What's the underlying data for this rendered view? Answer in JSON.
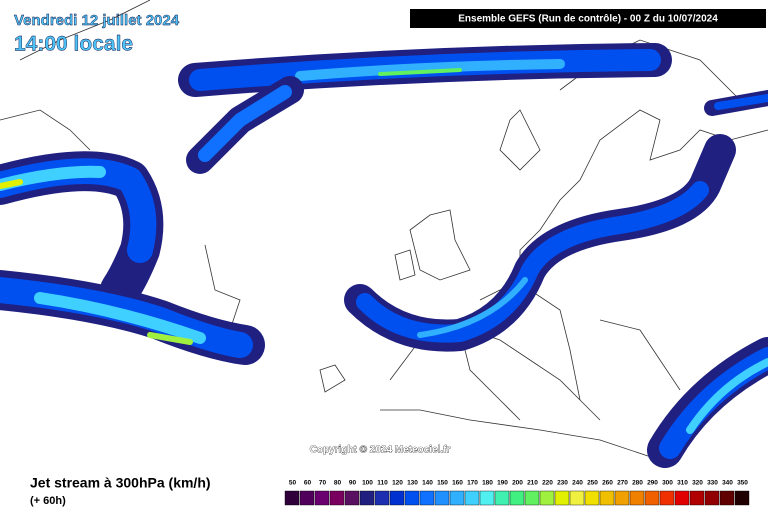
{
  "header": {
    "date": "Vendredi 12 juillet 2024",
    "time": "14:00 locale"
  },
  "run_info": "Ensemble GEFS  (Run de contrôle)  -  00 Z du 10/07/2024",
  "copyright": "Copyright © 2024 Meteociel.fr",
  "footer": {
    "title": "Jet stream à 300hPa (km/h)",
    "subtitle": "(+ 60h)"
  },
  "legend": {
    "items": [
      {
        "value": 50,
        "color": "#30003a"
      },
      {
        "value": 60,
        "color": "#50005a"
      },
      {
        "value": 70,
        "color": "#6a0070"
      },
      {
        "value": 80,
        "color": "#7a0060"
      },
      {
        "value": 90,
        "color": "#5a1060"
      },
      {
        "value": 100,
        "color": "#202080"
      },
      {
        "value": 110,
        "color": "#1c2fb0"
      },
      {
        "value": 120,
        "color": "#0030d0"
      },
      {
        "value": 130,
        "color": "#0050f0"
      },
      {
        "value": 140,
        "color": "#1070ff"
      },
      {
        "value": 150,
        "color": "#2090ff"
      },
      {
        "value": 160,
        "color": "#30b0ff"
      },
      {
        "value": 170,
        "color": "#40d0ff"
      },
      {
        "value": 180,
        "color": "#50f0f0"
      },
      {
        "value": 190,
        "color": "#40f0b0"
      },
      {
        "value": 200,
        "color": "#40f080"
      },
      {
        "value": 210,
        "color": "#60f060"
      },
      {
        "value": 220,
        "color": "#a0f040"
      },
      {
        "value": 230,
        "color": "#e0f000"
      },
      {
        "value": 240,
        "color": "#f0f040"
      },
      {
        "value": 250,
        "color": "#f0e000"
      },
      {
        "value": 260,
        "color": "#f0c000"
      },
      {
        "value": 270,
        "color": "#f0a000"
      },
      {
        "value": 280,
        "color": "#f08000"
      },
      {
        "value": 290,
        "color": "#f06000"
      },
      {
        "value": 300,
        "color": "#f03000"
      },
      {
        "value": 310,
        "color": "#e00000"
      },
      {
        "value": 320,
        "color": "#b00000"
      },
      {
        "value": 330,
        "color": "#900000"
      },
      {
        "value": 340,
        "color": "#600000"
      },
      {
        "value": 350,
        "color": "#200000"
      }
    ]
  }
}
